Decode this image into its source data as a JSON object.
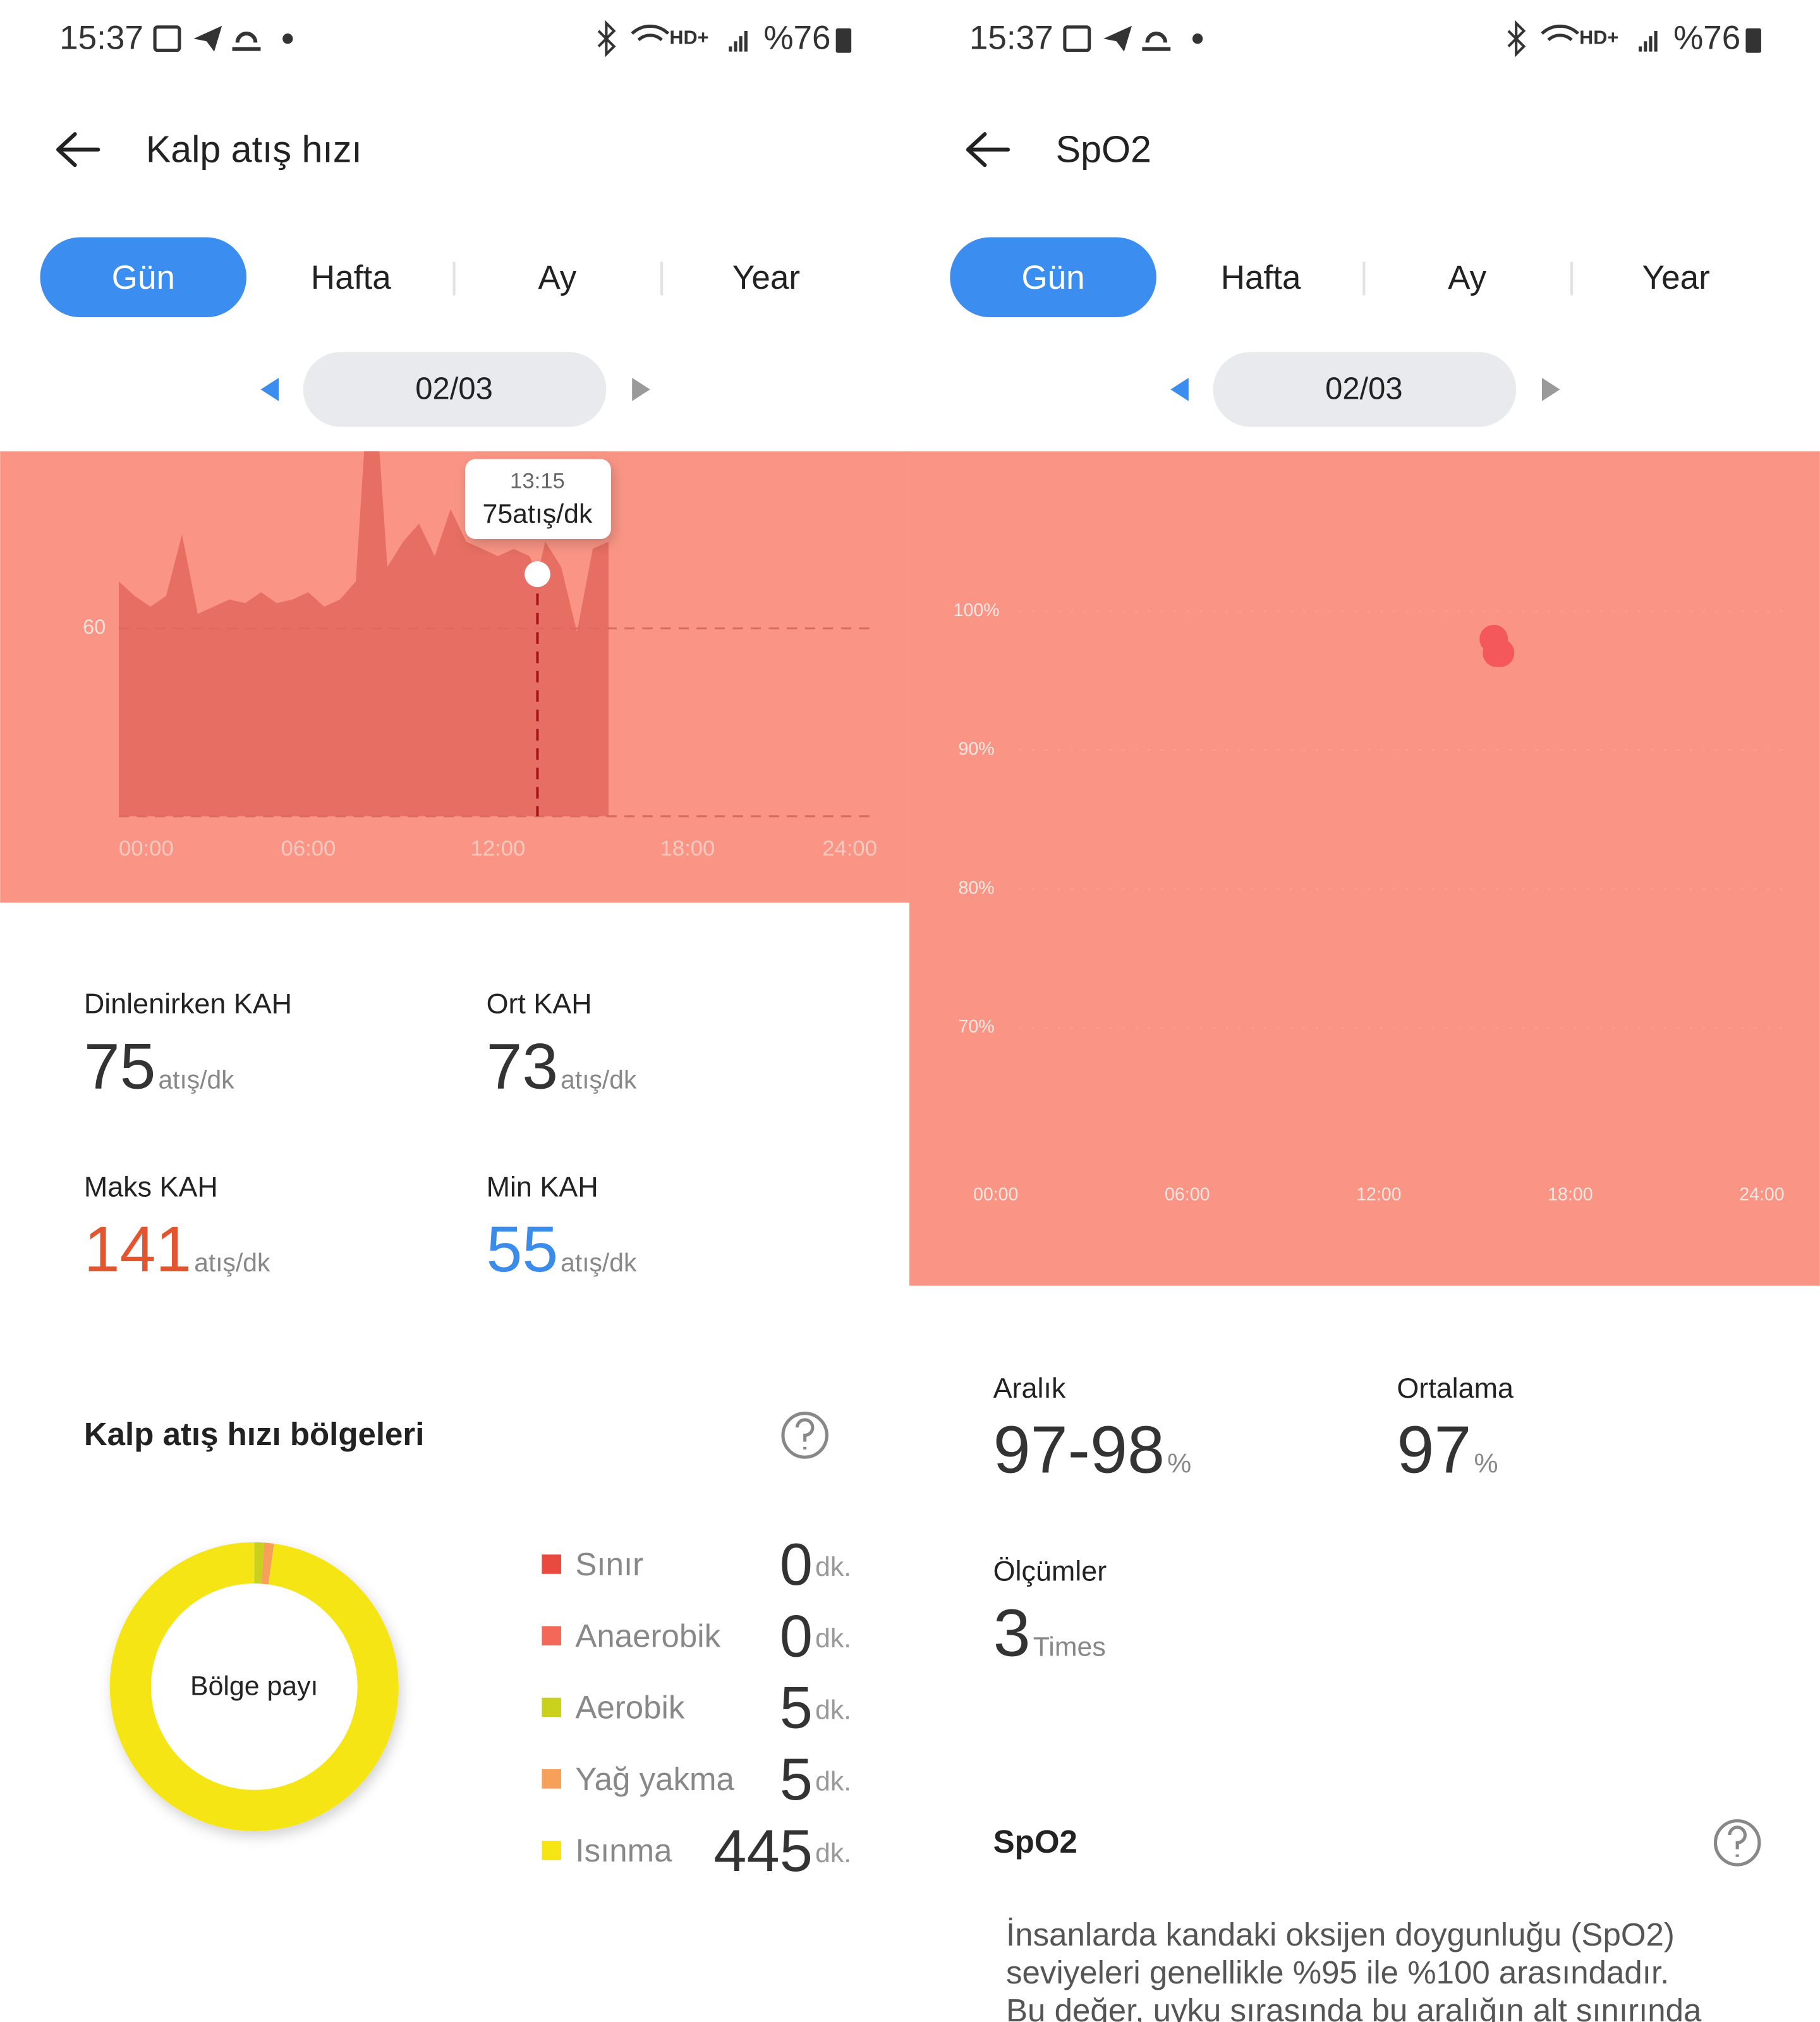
{
  "screens": [
    {
      "status_bar": {
        "time": "15:37",
        "network": "HD+",
        "battery": "%76"
      },
      "title": "Kalp atış hızı",
      "tabs": [
        "Gün",
        "Hafta",
        "Ay",
        "Year"
      ],
      "date": "02/03",
      "stats": [
        {
          "label": "Dinlenirken KAH",
          "value": 75,
          "unit": "atış/dk"
        },
        {
          "label": "Ort KAH",
          "value": 73,
          "unit": "atış/dk"
        },
        {
          "label": "Maks KAH",
          "value": 141,
          "unit": "atış/dk",
          "color": "#e2552f"
        },
        {
          "label": "Min KAH",
          "value": 55,
          "unit": "atış/dk",
          "color": "#3b8cea"
        }
      ]
    },
    {
      "status_bar": {
        "time": "15:37",
        "network": "HD+",
        "battery": "%76"
      },
      "title": "SpO2",
      "tabs": [
        "Gün",
        "Hafta",
        "Ay",
        "Year"
      ],
      "date": "02/03",
      "stats": [
        {
          "label": "Aralık",
          "value": "97-98",
          "unit": "%"
        },
        {
          "label": "Ortalama",
          "value": 97,
          "unit": "%"
        },
        {
          "label": "Ölçümler",
          "value": 3,
          "unit": "Times"
        }
      ],
      "info": {
        "title": "SpO2",
        "lines": [
          "İnsanlarda kandaki oksijen doygunluğu (SpO2)",
          "seviyeleri genellikle %95 ile %100 arasındadır.",
          "Bu değer, uyku sırasında bu aralığın alt sınırında"
        ]
      }
    }
  ],
  "chart_data": [
    {
      "type": "area",
      "color": "#e2675c",
      "background": "#fa9585",
      "x": [
        0,
        0.5,
        1,
        1.5,
        2,
        2.5,
        3,
        3.5,
        4,
        4.5,
        5,
        5.5,
        6,
        6.5,
        7,
        7.5,
        8,
        8.5,
        9,
        9.5,
        10,
        10.5,
        11,
        11.5,
        12,
        12.5,
        13,
        13.25,
        13.5,
        14,
        14.5,
        15,
        15.5
      ],
      "values": [
        73,
        69,
        66,
        69,
        86,
        64,
        66,
        68,
        67,
        70,
        67,
        68,
        70,
        66,
        68,
        73,
        141,
        77,
        84,
        89,
        80,
        93,
        84,
        82,
        80,
        82,
        80,
        75,
        84,
        77,
        59,
        82,
        84
      ],
      "xlim": [
        0,
        24
      ],
      "xticks": [
        {
          "value": 0,
          "label": "00:00"
        },
        {
          "value": 6,
          "label": "06:00"
        },
        {
          "value": 12,
          "label": "12:00"
        },
        {
          "value": 18,
          "label": "18:00"
        },
        {
          "value": 24,
          "label": "24:00"
        }
      ],
      "ylim": [
        8,
        109
      ],
      "yticks": [
        60
      ],
      "grid": true,
      "highlight": {
        "x": 13.25,
        "label": "13:15",
        "value": 75,
        "unit": "atış/dk"
      }
    },
    {
      "type": "scatter",
      "color": "#f5585b",
      "background": "#fa9585",
      "x": [
        15.6,
        15.7,
        15.8
      ],
      "values": [
        98,
        97,
        97
      ],
      "xlim": [
        0,
        24
      ],
      "xticks": [
        {
          "value": 0,
          "label": "00:00"
        },
        {
          "value": 6,
          "label": "06:00"
        },
        {
          "value": 12,
          "label": "12:00"
        },
        {
          "value": 18,
          "label": "18:00"
        },
        {
          "value": 24,
          "label": "24:00"
        }
      ],
      "ylim": [
        70,
        100
      ],
      "yticks": [
        {
          "value": 70,
          "label": "70%"
        },
        {
          "value": 80,
          "label": "80%"
        },
        {
          "value": 90,
          "label": "90%"
        },
        {
          "value": 100,
          "label": "100%"
        }
      ],
      "grid": true
    },
    {
      "type": "donut",
      "title": "Kalp atış hızı bölgeleri",
      "center_label": "Bölge payı",
      "categories": [
        "Sınır",
        "Anaerobik",
        "Aerobik",
        "Yağ yakma",
        "Isınma"
      ],
      "values": [
        0,
        0,
        5,
        5,
        445
      ],
      "unit": "dk.",
      "colors": [
        "#e84a3f",
        "#f4685a",
        "#c9d11c",
        "#f7a05a",
        "#f6e515"
      ]
    }
  ]
}
